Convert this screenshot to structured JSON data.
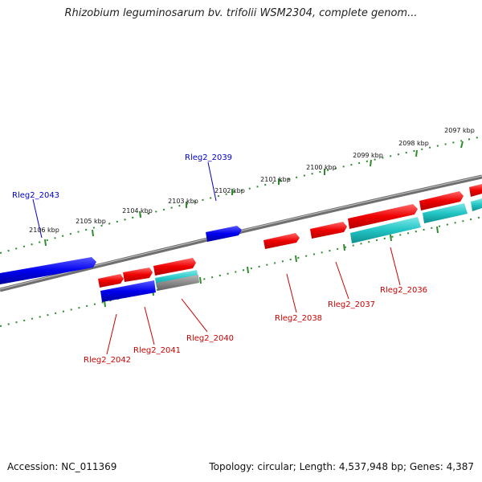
{
  "title": "Rhizobium leguminosarum bv. trifolii WSM2304, complete genom...",
  "footer": {
    "accession": "Accession: NC_011369",
    "topology": "Topology: circular; Length: 4,537,948 bp; Genes: 4,387"
  },
  "colors": {
    "backbone": "#808080",
    "ruler": "#2e8b2e",
    "forward_gene": "#ff1a1a",
    "reverse_gene": "#1a1aff",
    "rna_gene": "#33cccc",
    "forward_label": "#cc0000",
    "reverse_label": "#0000cc"
  },
  "scale_labels": [
    "2097 kbp",
    "2098 kbp",
    "2099 kbp",
    "2100 kbp",
    "2101 kbp",
    "2102 kbp",
    "2103 kbp",
    "2104 kbp",
    "2105 kbp",
    "2106 kbp"
  ],
  "gene_labels": {
    "outer": [
      "Rleg2_2039",
      "Rleg2_2043"
    ],
    "inner": [
      "Rleg2_2036",
      "Rleg2_2037",
      "Rleg2_2038",
      "Rleg2_2040",
      "Rleg2_2041",
      "Rleg2_2042"
    ]
  }
}
